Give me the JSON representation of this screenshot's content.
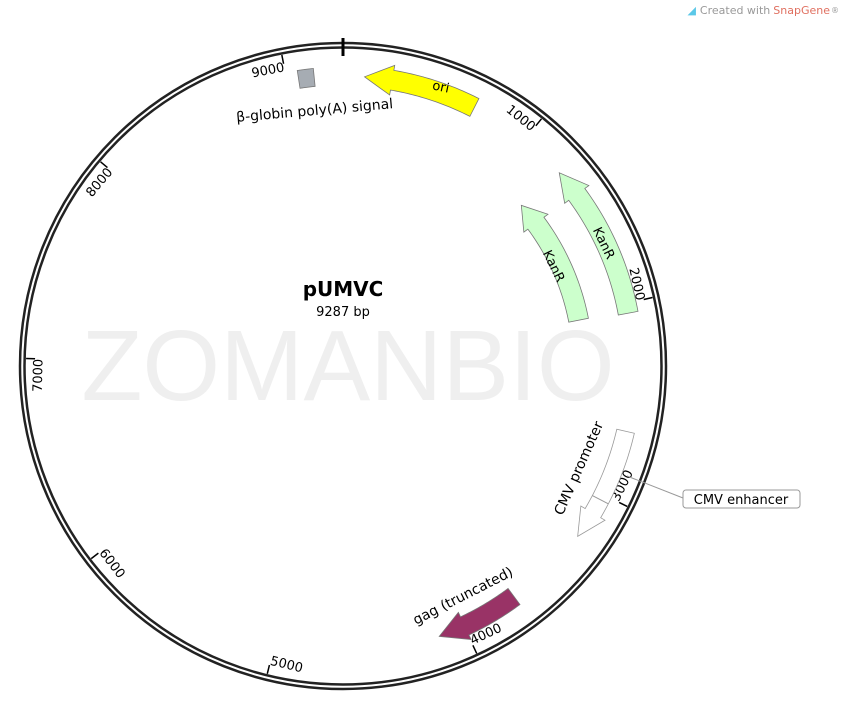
{
  "credit": {
    "prefix": "Created with ",
    "brand": "SnapGene",
    "suffix": "®",
    "icon": "snapgene-logo-icon"
  },
  "watermark": "ZOMANBIO",
  "plasmid": {
    "name": "pUMVC",
    "length_label": "9287 bp",
    "length": 9287
  },
  "ticks": [
    {
      "bp": 1000,
      "label": "1000"
    },
    {
      "bp": 2000,
      "label": "2000"
    },
    {
      "bp": 3000,
      "label": "3000"
    },
    {
      "bp": 4000,
      "label": "4000"
    },
    {
      "bp": 5000,
      "label": "5000"
    },
    {
      "bp": 6000,
      "label": "6000"
    },
    {
      "bp": 7000,
      "label": "7000"
    },
    {
      "bp": 8000,
      "label": "8000"
    },
    {
      "bp": 9000,
      "label": "9000"
    }
  ],
  "features": [
    {
      "name": "ori",
      "start": 110,
      "end": 695,
      "direction": "reverse",
      "color": "#ffff00"
    },
    {
      "name": "β-globin poly(A) signal",
      "start": 9060,
      "end": 9140,
      "direction": "none",
      "color": "#a6acb3"
    },
    {
      "name": "KanR",
      "start": 1244,
      "end": 2051,
      "direction": "reverse",
      "color": "#ccffcc"
    },
    {
      "name": "KanR",
      "start": 1238,
      "end": 2038,
      "direction": "reverse",
      "color": "#ccffcc"
    },
    {
      "name": "CMV promoter",
      "start": 2657,
      "end": 3250,
      "direction": "forward",
      "color": "#ffffff"
    },
    {
      "name": "gag (truncated)",
      "start": 3700,
      "end": 4138,
      "direction": "forward",
      "color": "#993366"
    }
  ],
  "callouts": [
    {
      "name": "CMV enhancer",
      "bp": 3030
    }
  ]
}
